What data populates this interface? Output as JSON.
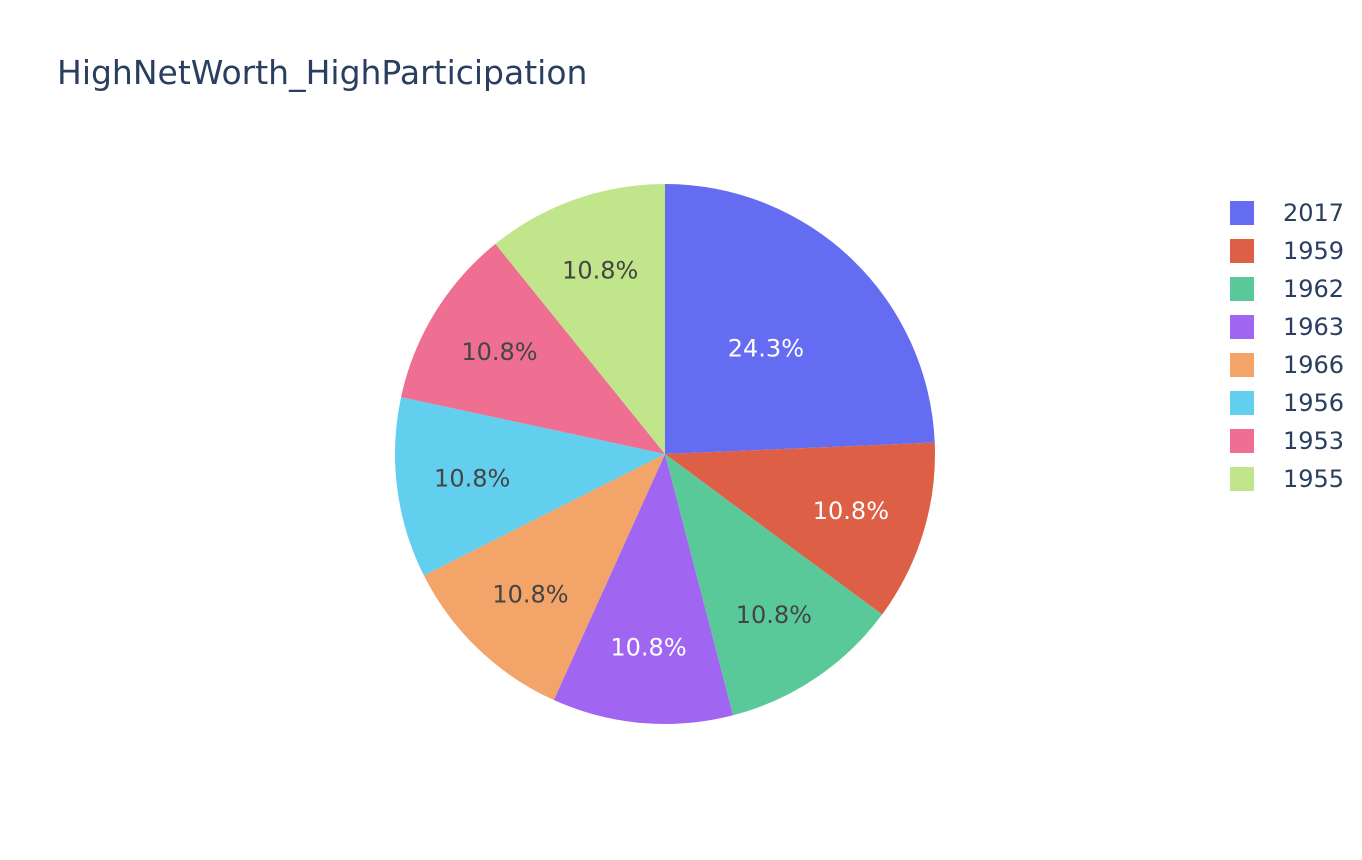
{
  "chart_data": {
    "type": "pie",
    "title": "HighNetWorth_HighParticipation",
    "categories": [
      "2017",
      "1959",
      "1962",
      "1963",
      "1966",
      "1956",
      "1953",
      "1955"
    ],
    "values": [
      24.3,
      10.8,
      10.8,
      10.8,
      10.8,
      10.8,
      10.8,
      10.8
    ],
    "labels": [
      "24.3%",
      "10.8%",
      "10.8%",
      "10.8%",
      "10.8%",
      "10.8%",
      "10.8%",
      "10.8%"
    ],
    "colors": [
      "#636efa",
      "#ef553b",
      "#00cc96",
      "#ab63fa",
      "#ffa15a",
      "#19d3f3",
      "#ff6692",
      "#b6e880"
    ],
    "slice_colors": [
      "#646cf2",
      "#dd5f46",
      "#5ac99a",
      "#a066f2",
      "#f2a469",
      "#62cfee",
      "#ee6f91",
      "#c0e58a"
    ],
    "direction": "clockwise",
    "start_position": "top",
    "legend_position": "right"
  }
}
